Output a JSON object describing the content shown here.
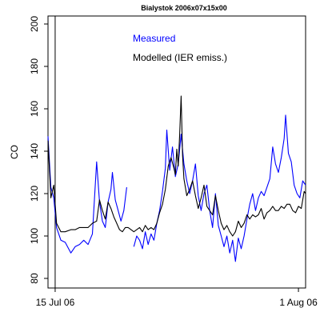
{
  "chart_data": {
    "type": "line",
    "title": "Bialystok 2006x07x15x00",
    "xlabel": "",
    "ylabel": "CO",
    "xlim": [
      0,
      18.0
    ],
    "ylim": [
      80,
      200
    ],
    "x_ticks": [
      {
        "value": 0.5,
        "label": "15 Jul 06"
      },
      {
        "value": 17.5,
        "label": "1 Aug 06"
      }
    ],
    "y_ticks": [
      80,
      100,
      120,
      140,
      160,
      180,
      200
    ],
    "vline_x": 0.5,
    "grid": false,
    "legend_position": "top-right",
    "series": [
      {
        "name": "Measured",
        "color": "#0000ff",
        "segments": [
          [
            [
              0.0,
              147
            ],
            [
              0.2,
              123
            ],
            [
              0.4,
              118
            ],
            [
              0.6,
              104
            ],
            [
              0.9,
              98
            ],
            [
              1.2,
              97
            ],
            [
              1.6,
              92
            ],
            [
              1.9,
              95
            ],
            [
              2.2,
              96
            ],
            [
              2.5,
              98
            ],
            [
              2.8,
              96
            ],
            [
              3.1,
              101
            ],
            [
              3.4,
              135
            ],
            [
              3.6,
              116
            ],
            [
              3.8,
              107
            ],
            [
              4.0,
              104
            ],
            [
              4.2,
              116
            ],
            [
              4.4,
              122
            ],
            [
              4.5,
              130
            ],
            [
              4.7,
              117
            ],
            [
              4.9,
              112
            ],
            [
              5.1,
              107
            ],
            [
              5.3,
              112
            ],
            [
              5.5,
              123
            ]
          ],
          [
            [
              6.0,
              95
            ],
            [
              6.2,
              100
            ],
            [
              6.4,
              98
            ],
            [
              6.6,
              94
            ],
            [
              6.8,
              102
            ],
            [
              7.0,
              96
            ],
            [
              7.2,
              101
            ],
            [
              7.4,
              98
            ],
            [
              7.6,
              106
            ],
            [
              7.8,
              112
            ],
            [
              8.0,
              121
            ],
            [
              8.2,
              132
            ],
            [
              8.3,
              150
            ],
            [
              8.5,
              131
            ],
            [
              8.7,
              142
            ],
            [
              8.9,
              128
            ],
            [
              9.1,
              134
            ],
            [
              9.3,
              148
            ],
            [
              9.5,
              134
            ],
            [
              9.7,
              126
            ],
            [
              9.9,
              120
            ],
            [
              10.1,
              126
            ],
            [
              10.3,
              134
            ],
            [
              10.5,
              119
            ],
            [
              10.7,
              112
            ],
            [
              10.9,
              120
            ],
            [
              11.1,
              124
            ],
            [
              11.3,
              112
            ],
            [
              11.5,
              104
            ],
            [
              11.7,
              120
            ],
            [
              11.9,
              105
            ],
            [
              12.1,
              100
            ],
            [
              12.3,
              95
            ],
            [
              12.5,
              100
            ],
            [
              12.7,
              92
            ],
            [
              12.9,
              98
            ],
            [
              13.1,
              88
            ],
            [
              13.3,
              99
            ],
            [
              13.5,
              94
            ],
            [
              13.7,
              100
            ],
            [
              13.9,
              108
            ],
            [
              14.1,
              115
            ],
            [
              14.3,
              120
            ],
            [
              14.5,
              112
            ],
            [
              14.7,
              118
            ],
            [
              14.9,
              121
            ],
            [
              15.1,
              119
            ],
            [
              15.3,
              123
            ],
            [
              15.5,
              127
            ],
            [
              15.7,
              142
            ],
            [
              15.9,
              134
            ],
            [
              16.1,
              130
            ],
            [
              16.3,
              137
            ],
            [
              16.5,
              146
            ],
            [
              16.6,
              157
            ],
            [
              16.8,
              139
            ],
            [
              17.0,
              135
            ],
            [
              17.2,
              124
            ],
            [
              17.4,
              120
            ],
            [
              17.6,
              118
            ],
            [
              17.8,
              126
            ],
            [
              18.0,
              124
            ]
          ]
        ]
      },
      {
        "name": "Modelled (IER emiss.)",
        "color": "#000000",
        "segments": [
          [
            [
              0.0,
              145
            ],
            [
              0.2,
              118
            ],
            [
              0.4,
              124
            ],
            [
              0.6,
              106
            ],
            [
              0.9,
              102
            ],
            [
              1.2,
              102
            ],
            [
              1.6,
              103
            ],
            [
              1.9,
              103
            ],
            [
              2.2,
              104
            ],
            [
              2.5,
              104
            ],
            [
              2.8,
              104
            ],
            [
              3.1,
              106
            ],
            [
              3.4,
              107
            ],
            [
              3.6,
              117
            ],
            [
              3.8,
              112
            ],
            [
              4.0,
              108
            ],
            [
              4.2,
              116
            ],
            [
              4.4,
              113
            ],
            [
              4.6,
              109
            ],
            [
              4.8,
              106
            ],
            [
              5.0,
              103
            ],
            [
              5.2,
              102
            ],
            [
              5.4,
              104
            ],
            [
              5.6,
              104
            ],
            [
              5.8,
              103
            ],
            [
              6.0,
              102
            ],
            [
              6.2,
              103
            ],
            [
              6.4,
              104
            ],
            [
              6.6,
              102
            ],
            [
              6.8,
              105
            ],
            [
              7.0,
              103
            ],
            [
              7.2,
              104
            ],
            [
              7.4,
              103
            ],
            [
              7.6,
              106
            ],
            [
              7.8,
              111
            ],
            [
              8.0,
              115
            ],
            [
              8.2,
              122
            ],
            [
              8.4,
              133
            ],
            [
              8.6,
              137
            ],
            [
              8.8,
              132
            ],
            [
              8.9,
              129
            ],
            [
              9.0,
              141
            ],
            [
              9.1,
              133
            ],
            [
              9.2,
              148
            ],
            [
              9.3,
              166
            ],
            [
              9.4,
              138
            ],
            [
              9.5,
              127
            ],
            [
              9.7,
              119
            ],
            [
              9.9,
              122
            ],
            [
              10.1,
              126
            ],
            [
              10.3,
              119
            ],
            [
              10.5,
              113
            ],
            [
              10.7,
              118
            ],
            [
              10.9,
              124
            ],
            [
              11.1,
              114
            ],
            [
              11.3,
              112
            ],
            [
              11.5,
              110
            ],
            [
              11.7,
              119
            ],
            [
              11.9,
              112
            ],
            [
              12.1,
              106
            ],
            [
              12.3,
              103
            ],
            [
              12.5,
              105
            ],
            [
              12.7,
              102
            ],
            [
              12.9,
              100
            ],
            [
              13.1,
              102
            ],
            [
              13.3,
              107
            ],
            [
              13.5,
              104
            ],
            [
              13.7,
              106
            ],
            [
              13.9,
              110
            ],
            [
              14.1,
              108
            ],
            [
              14.3,
              110
            ],
            [
              14.5,
              109
            ],
            [
              14.7,
              110
            ],
            [
              14.9,
              113
            ],
            [
              15.1,
              108
            ],
            [
              15.3,
              111
            ],
            [
              15.5,
              112
            ],
            [
              15.7,
              114
            ],
            [
              15.9,
              112
            ],
            [
              16.1,
              112
            ],
            [
              16.3,
              114
            ],
            [
              16.5,
              113
            ],
            [
              16.7,
              115
            ],
            [
              16.9,
              115
            ],
            [
              17.1,
              112
            ],
            [
              17.3,
              111
            ],
            [
              17.5,
              114
            ],
            [
              17.7,
              113
            ],
            [
              17.9,
              121
            ],
            [
              18.0,
              120
            ]
          ]
        ]
      }
    ]
  }
}
